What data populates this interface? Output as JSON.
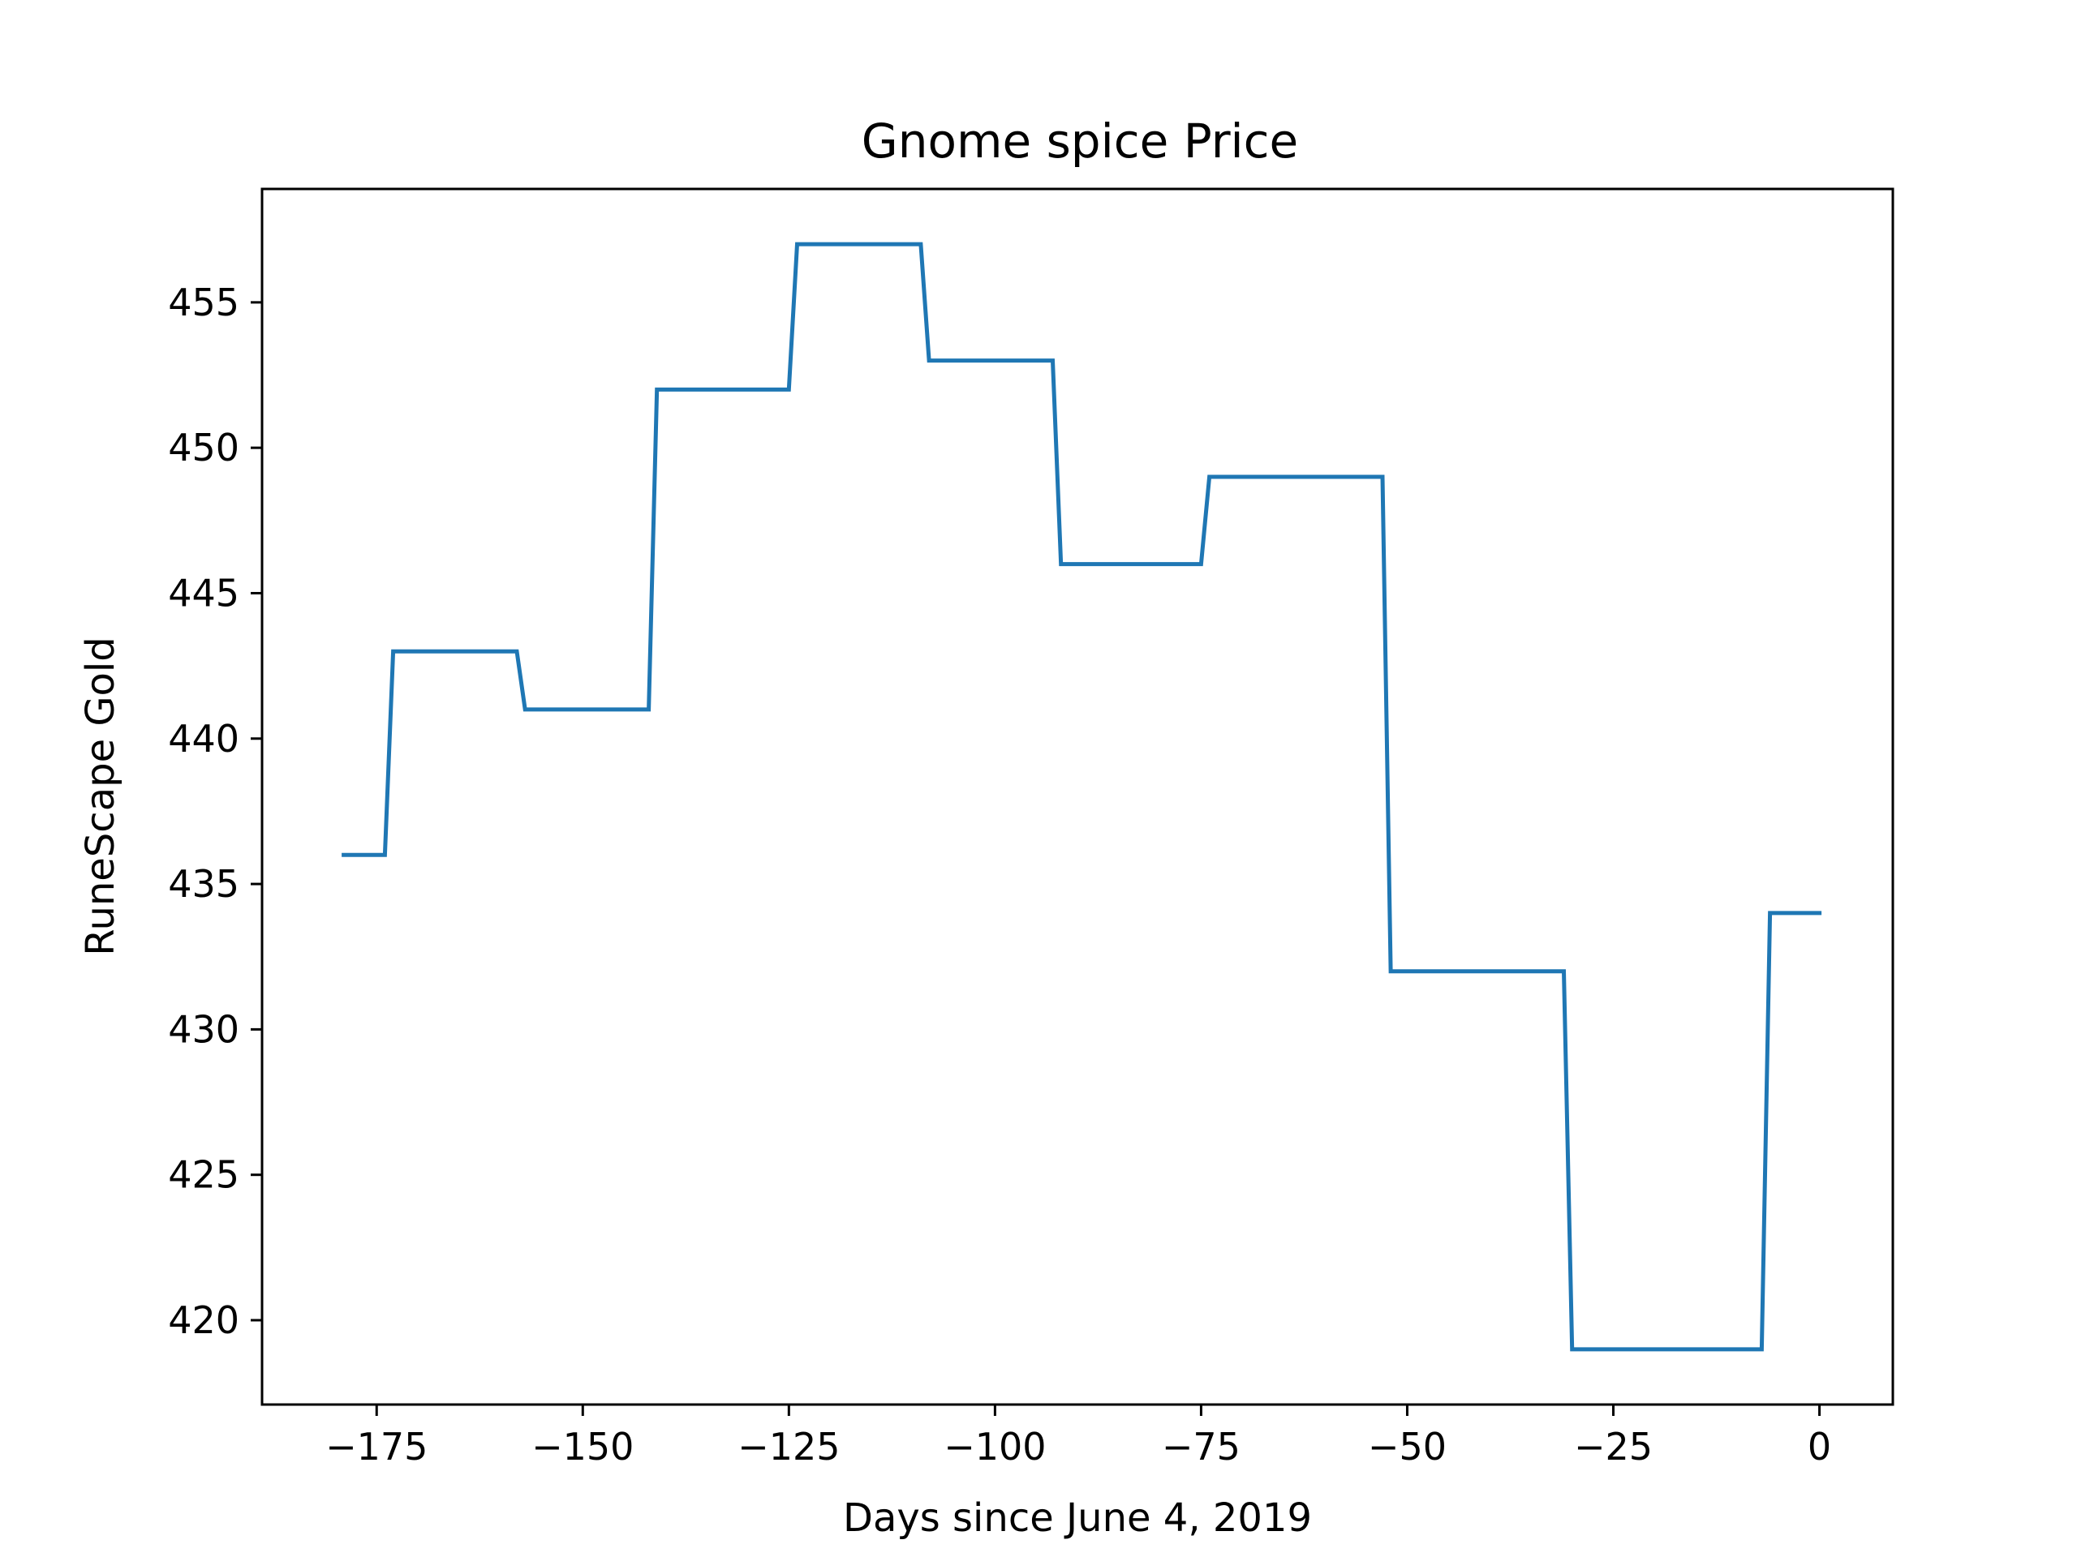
{
  "chart_data": {
    "type": "line",
    "title": "Gnome spice Price",
    "xlabel": "Days since June 4, 2019",
    "ylabel": "RuneScape Gold",
    "xlim": [
      -188.9,
      8.9
    ],
    "ylim": [
      417.1,
      458.9
    ],
    "xticks": [
      -175,
      -150,
      -125,
      -100,
      -75,
      -50,
      -25,
      0
    ],
    "xtick_labels": [
      "−175",
      "−150",
      "−125",
      "−100",
      "−75",
      "−50",
      "−25",
      "0"
    ],
    "yticks": [
      420,
      425,
      430,
      435,
      440,
      445,
      450,
      455
    ],
    "ytick_labels": [
      "420",
      "425",
      "430",
      "435",
      "440",
      "445",
      "450",
      "455"
    ],
    "grid": false,
    "series": [
      {
        "color": "#1f77b4",
        "x": [
          -179,
          -174,
          -173,
          -158,
          -157,
          -142,
          -141,
          -125,
          -124,
          -109,
          -108,
          -93,
          -92,
          -75,
          -74,
          -53,
          -52,
          -31,
          -30,
          -7,
          -6,
          0
        ],
        "y": [
          436,
          436,
          443,
          443,
          441,
          441,
          452,
          452,
          457,
          457,
          453,
          453,
          446,
          446,
          449,
          449,
          432,
          432,
          419,
          419,
          434,
          434
        ]
      }
    ]
  }
}
